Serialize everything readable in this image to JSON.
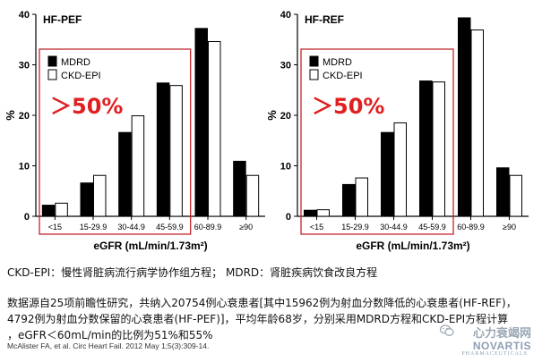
{
  "chart_data": [
    {
      "type": "bar",
      "title": "HF-PEF",
      "xlabel": "eGFR (mL/min/1.73m²)",
      "ylabel": "%",
      "ylim": [
        0,
        40
      ],
      "yticks": [
        "0",
        "10",
        "20",
        "30",
        "40"
      ],
      "categories": [
        "<15",
        "15-29.9",
        "30-44.9",
        "45-59.9",
        "60-89.9",
        "≥90"
      ],
      "series": [
        {
          "name": "MDRD",
          "color": "#000000",
          "values": [
            2.2,
            6.6,
            16.6,
            26.4,
            37.2,
            10.9
          ]
        },
        {
          "name": "CKD-EPI",
          "color": "#ffffff",
          "values": [
            2.6,
            8.1,
            19.9,
            25.9,
            34.6,
            8.1
          ]
        }
      ],
      "annotation": "＞50%",
      "legend_position": "upper-left"
    },
    {
      "type": "bar",
      "title": "HF-REF",
      "xlabel": "eGFR (mL/min/1.73m²)",
      "ylabel": "%",
      "ylim": [
        0,
        40
      ],
      "yticks": [
        "0",
        "10",
        "20",
        "30",
        "40"
      ],
      "categories": [
        "<15",
        "15-29.9",
        "30-44.9",
        "45-59.9",
        "60-89.9",
        "≥90"
      ],
      "series": [
        {
          "name": "MDRD",
          "color": "#000000",
          "values": [
            1.2,
            6.3,
            16.6,
            26.8,
            39.3,
            9.6
          ]
        },
        {
          "name": "CKD-EPI",
          "color": "#ffffff",
          "values": [
            1.3,
            7.6,
            18.5,
            26.6,
            36.9,
            8.1
          ]
        }
      ],
      "annotation": "＞50%",
      "legend_position": "upper-left"
    }
  ],
  "colors": {
    "highlight_box": "#c0262c",
    "annotation": "#e02020"
  },
  "captions": {
    "abbrev": "CKD-EPI：慢性肾脏病流行病学协作组方程；   MDRD：肾脏疾病饮食改良方程",
    "line1": "数据源自25项前瞻性研究，共纳入20754例心衰患者[其中15962例为射血分数降低的心衰患者(HF-REF)，",
    "line2": "4792例为射血分数保留的心衰患者(HF-PEF)]，平均年龄68岁，分别采用MDRD方程和CKD-EPI方程计算",
    "line3": "，eGFR＜60mL/min的比例为51%和55%",
    "reference": "McAlister FA, et al. Circ Heart Fail. 2012 May 1;5(3):309-14."
  },
  "watermark": {
    "line1": "心力衰竭网",
    "logo": "NOVARTIS",
    "sub": "PHARMACEUTICALS",
    "icon": "wechat-icon"
  }
}
